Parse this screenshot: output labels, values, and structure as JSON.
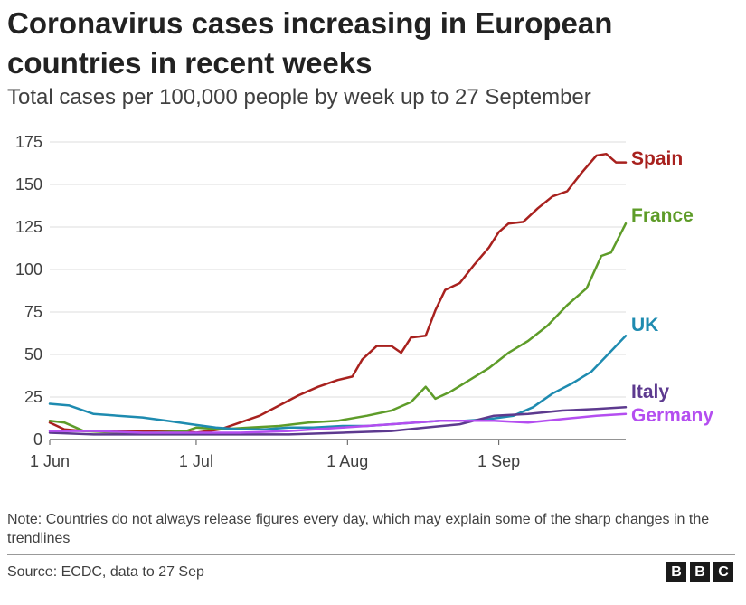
{
  "chart_data": {
    "type": "line",
    "title": "Coronavirus cases increasing in European countries in recent weeks",
    "subtitle": "Total cases per 100,000 people by week up to 27 September",
    "xlabel": "",
    "ylabel": "",
    "ylim": [
      0,
      175
    ],
    "yticks": [
      0,
      25,
      50,
      75,
      100,
      125,
      150,
      175
    ],
    "xlim": [
      "2020-06-01",
      "2020-09-27"
    ],
    "xticks": [
      {
        "date": "2020-06-01",
        "label": "1 Jun"
      },
      {
        "date": "2020-07-01",
        "label": "1 Jul"
      },
      {
        "date": "2020-08-01",
        "label": "1 Aug"
      },
      {
        "date": "2020-09-01",
        "label": "1 Sep"
      }
    ],
    "grid": "horizontal",
    "legend": "labels at line ends (right)",
    "series": [
      {
        "name": "Spain",
        "color": "#a8211e",
        "x": [
          "2020-06-01",
          "2020-06-04",
          "2020-06-08",
          "2020-06-15",
          "2020-06-22",
          "2020-06-29",
          "2020-07-01",
          "2020-07-06",
          "2020-07-10",
          "2020-07-14",
          "2020-07-18",
          "2020-07-22",
          "2020-07-26",
          "2020-07-30",
          "2020-08-02",
          "2020-08-04",
          "2020-08-07",
          "2020-08-10",
          "2020-08-12",
          "2020-08-14",
          "2020-08-17",
          "2020-08-19",
          "2020-08-21",
          "2020-08-24",
          "2020-08-27",
          "2020-08-30",
          "2020-09-01",
          "2020-09-03",
          "2020-09-06",
          "2020-09-09",
          "2020-09-12",
          "2020-09-15",
          "2020-09-18",
          "2020-09-21",
          "2020-09-23",
          "2020-09-25",
          "2020-09-27"
        ],
        "y": [
          10,
          6,
          5,
          5,
          5,
          5,
          4,
          6,
          10,
          14,
          20,
          26,
          31,
          35,
          37,
          47,
          55,
          55,
          51,
          60,
          61,
          76,
          88,
          92,
          103,
          113,
          122,
          127,
          128,
          136,
          143,
          146,
          157,
          167,
          168,
          163,
          163
        ]
      },
      {
        "name": "France",
        "color": "#5e9c29",
        "x": [
          "2020-06-01",
          "2020-06-04",
          "2020-06-08",
          "2020-06-15",
          "2020-06-22",
          "2020-06-29",
          "2020-07-01",
          "2020-07-06",
          "2020-07-12",
          "2020-07-18",
          "2020-07-24",
          "2020-07-30",
          "2020-08-05",
          "2020-08-10",
          "2020-08-14",
          "2020-08-17",
          "2020-08-19",
          "2020-08-22",
          "2020-08-26",
          "2020-08-30",
          "2020-09-03",
          "2020-09-07",
          "2020-09-11",
          "2020-09-15",
          "2020-09-19",
          "2020-09-22",
          "2020-09-24",
          "2020-09-27"
        ],
        "y": [
          11,
          10,
          5,
          4,
          4,
          5,
          7,
          6,
          7,
          8,
          10,
          11,
          14,
          17,
          22,
          31,
          24,
          28,
          35,
          42,
          51,
          58,
          67,
          79,
          89,
          108,
          110,
          127
        ]
      },
      {
        "name": "UK",
        "color": "#1e8bb0",
        "x": [
          "2020-06-01",
          "2020-06-05",
          "2020-06-10",
          "2020-06-15",
          "2020-06-20",
          "2020-06-25",
          "2020-06-30",
          "2020-07-05",
          "2020-07-10",
          "2020-07-15",
          "2020-07-20",
          "2020-07-25",
          "2020-07-31",
          "2020-08-05",
          "2020-08-10",
          "2020-08-15",
          "2020-08-20",
          "2020-08-25",
          "2020-08-30",
          "2020-09-04",
          "2020-09-08",
          "2020-09-12",
          "2020-09-16",
          "2020-09-20",
          "2020-09-24",
          "2020-09-27"
        ],
        "y": [
          21,
          20,
          15,
          14,
          13,
          11,
          9,
          7,
          6,
          6,
          7,
          7,
          8,
          8,
          9,
          10,
          11,
          11,
          12,
          14,
          19,
          27,
          33,
          40,
          52,
          61
        ]
      },
      {
        "name": "Italy",
        "color": "#5d3a8f",
        "x": [
          "2020-06-01",
          "2020-06-10",
          "2020-06-20",
          "2020-06-30",
          "2020-07-10",
          "2020-07-20",
          "2020-07-31",
          "2020-08-10",
          "2020-08-17",
          "2020-08-24",
          "2020-08-31",
          "2020-09-07",
          "2020-09-14",
          "2020-09-21",
          "2020-09-27"
        ],
        "y": [
          4,
          3,
          3,
          3,
          3,
          3,
          4,
          5,
          7,
          9,
          14,
          15,
          17,
          18,
          19
        ]
      },
      {
        "name": "Germany",
        "color": "#b44ef0",
        "x": [
          "2020-06-01",
          "2020-06-10",
          "2020-06-20",
          "2020-06-30",
          "2020-07-10",
          "2020-07-20",
          "2020-07-31",
          "2020-08-10",
          "2020-08-20",
          "2020-08-31",
          "2020-09-07",
          "2020-09-14",
          "2020-09-21",
          "2020-09-27"
        ],
        "y": [
          5,
          5,
          4,
          4,
          4,
          5,
          7,
          9,
          11,
          11,
          10,
          12,
          14,
          15
        ]
      }
    ]
  },
  "note": "Note: Countries do not always release figures every day, which may explain some of the sharp changes in the trendlines",
  "source": "Source: ECDC, data to 27 Sep",
  "logo": {
    "letters": [
      "B",
      "B",
      "C"
    ]
  }
}
